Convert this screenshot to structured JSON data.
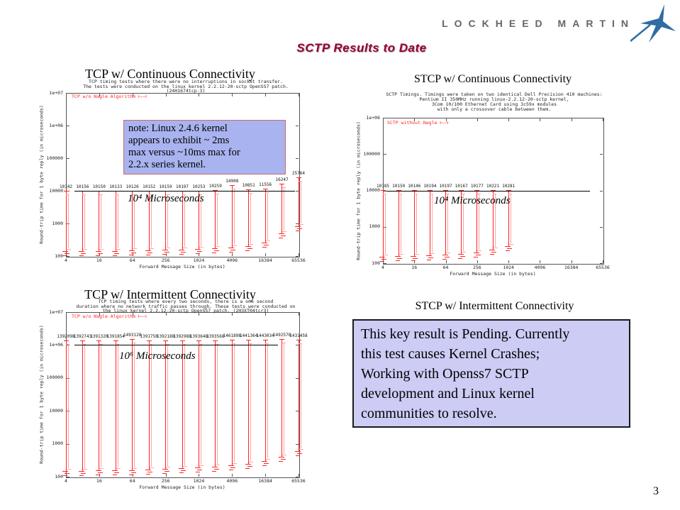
{
  "slide": {
    "title": "SCTP Results to Date",
    "logo_text": "LOCKHEED MARTIN",
    "page_number": "3"
  },
  "colors": {
    "title_red": "#990033",
    "plot_red": "#ff2222",
    "plot_pink": "#ffa3a3",
    "note_bg": "#a9b3ef",
    "note_border": "#cc6a6a",
    "pending_bg": "#ccccf5",
    "pending_border": "#1a1a1a",
    "logo_gray": "#63666a",
    "logo_blue": "#2e6ca4"
  },
  "note_box": {
    "lines": [
      "note: Linux 2.4.6 kernel",
      "appears to exhibit ~ 2ms",
      "max versus ~10ms max for",
      "2.2.x series kernel."
    ]
  },
  "pending_box": {
    "title": "STCP w/ Intermittent Connectivity",
    "lines": [
      "This key result is Pending. Currently",
      "this test causes Kernel Crashes;",
      "Working with Openss7 SCTP",
      "development and Linux kernel",
      "communities to resolve."
    ]
  },
  "chart_data": [
    {
      "type": "scatter",
      "title": "TCP w/ Continuous Connectivity",
      "subtitle_lines": [
        "TCP timing tests where there were no interruptions in socket transfer.",
        "The tests were conducted on the linux kernel 2.2.12-20-sctp OpenSS7 patch.",
        "(24H1674tcp-3)"
      ],
      "legend": "TCP w/o Nagle Algorithm",
      "legend_marker": "⊢—⊣",
      "xlabel": "Forward Message Size (in bytes)",
      "ylabel": "Round-trip time for 1 byte reply (in microseconds)",
      "x_log2_range": [
        2,
        16
      ],
      "y_log10_range": [
        2,
        7
      ],
      "x": [
        4,
        8,
        16,
        32,
        64,
        128,
        256,
        512,
        1024,
        2048,
        4096,
        8192,
        16384,
        32768,
        65536
      ],
      "max_values": [
        10142,
        10156,
        10150,
        10133,
        10126,
        10152,
        10159,
        10197,
        10253,
        10259,
        14908,
        10851,
        11556,
        16247,
        25764
      ],
      "min_values": [
        140,
        140,
        145,
        145,
        150,
        150,
        155,
        160,
        165,
        170,
        180,
        200,
        260,
        500,
        800
      ],
      "x_ticks": [
        {
          "label": "4",
          "value": 4
        },
        {
          "label": "16",
          "value": 16
        },
        {
          "label": "64",
          "value": 64
        },
        {
          "label": "256",
          "value": 256
        },
        {
          "label": "1024",
          "value": 1024
        },
        {
          "label": "4096",
          "value": 4096
        },
        {
          "label": "16384",
          "value": 16384
        },
        {
          "label": "65536",
          "value": 65536
        }
      ],
      "y_ticks": [
        {
          "label": "1e+07",
          "value": 10000000
        },
        {
          "label": "1e+06",
          "value": 1000000
        },
        {
          "label": "100000",
          "value": 100000
        },
        {
          "label": "10000",
          "value": 10000
        },
        {
          "label": "1000",
          "value": 1000
        },
        {
          "label": "100",
          "value": 100
        }
      ],
      "reference_line": {
        "value": 10000,
        "annotation": "10⁴ Microseconds"
      }
    },
    {
      "type": "scatter",
      "title": "STCP w/ Continuous Connectivity",
      "subtitle_lines": [
        "SCTP Timings.  Timings were taken on two identical Dell Precision 410 machines:",
        "Pentium II 350MHz running linux-2.2.12-20-sctp kernel,",
        "3Com 10/100 Ethernet Card using 3c59x modules",
        "with only a crossover cable between them."
      ],
      "legend": "SCTP without Nagle",
      "legend_marker": "⊢—⊣",
      "xlabel": "Forward Message Size (in bytes)",
      "ylabel": "Round-trip time for 1 byte reply (in microseconds)",
      "x_log2_range": [
        2,
        16
      ],
      "y_log10_range": [
        2,
        6
      ],
      "x": [
        4,
        8,
        16,
        32,
        64,
        128,
        256,
        512,
        1024
      ],
      "max_values": [
        10185,
        10150,
        10146,
        10194,
        10197,
        10167,
        10177,
        10221,
        10281
      ],
      "min_values": [
        150,
        155,
        160,
        165,
        170,
        180,
        200,
        230,
        300
      ],
      "x_ticks": [
        {
          "label": "4",
          "value": 4
        },
        {
          "label": "16",
          "value": 16
        },
        {
          "label": "64",
          "value": 64
        },
        {
          "label": "256",
          "value": 256
        },
        {
          "label": "1024",
          "value": 1024
        },
        {
          "label": "4096",
          "value": 4096
        },
        {
          "label": "16384",
          "value": 16384
        },
        {
          "label": "65536",
          "value": 65536
        }
      ],
      "y_ticks": [
        {
          "label": "1e+06",
          "value": 1000000
        },
        {
          "label": "100000",
          "value": 100000
        },
        {
          "label": "10000",
          "value": 10000
        },
        {
          "label": "1000",
          "value": 1000
        },
        {
          "label": "100",
          "value": 100
        }
      ],
      "reference_line": {
        "value": 10000,
        "annotation": "10⁴ Microseconds"
      }
    },
    {
      "type": "scatter",
      "title": "TCP w/ Intermittent Connectivity",
      "subtitle_lines": [
        "TCP timing tests where every two seconds, there is a one second",
        "duration where no network traffic passes through.  These tests were conducted on",
        "the linux kernel 2.2.12-20-sctp OpenSS7 patch. (2H3XT04tcr3)"
      ],
      "legend": "TCP w/o Nagle Algorithm",
      "legend_marker": "⊢—⊣",
      "xlabel": "Forward Message Size (in bytes)",
      "ylabel": "Round-trip time for 1 byte reply (in microseconds)",
      "x_log2_range": [
        2,
        16
      ],
      "y_log10_range": [
        2,
        7
      ],
      "x": [
        4,
        8,
        16,
        32,
        64,
        128,
        256,
        512,
        1024,
        2048,
        4096,
        8192,
        16384,
        32768,
        65536
      ],
      "max_values": [
        1392098,
        1392743,
        1391320,
        1391854,
        1493128,
        1391750,
        1392188,
        1392988,
        1393648,
        1393568,
        1461898,
        1441364,
        1443034,
        1492578,
        1431458
      ],
      "min_values": [
        150,
        150,
        155,
        155,
        160,
        165,
        170,
        180,
        190,
        200,
        220,
        250,
        300,
        400,
        600
      ],
      "x_ticks": [
        {
          "label": "4",
          "value": 4
        },
        {
          "label": "16",
          "value": 16
        },
        {
          "label": "64",
          "value": 64
        },
        {
          "label": "256",
          "value": 256
        },
        {
          "label": "1024",
          "value": 1024
        },
        {
          "label": "4096",
          "value": 4096
        },
        {
          "label": "16384",
          "value": 16384
        },
        {
          "label": "65536",
          "value": 65536
        }
      ],
      "y_ticks": [
        {
          "label": "1e+07",
          "value": 10000000
        },
        {
          "label": "1e+06",
          "value": 1000000
        },
        {
          "label": "100000",
          "value": 100000
        },
        {
          "label": "10000",
          "value": 10000
        },
        {
          "label": "1000",
          "value": 1000
        },
        {
          "label": "100",
          "value": 100
        }
      ],
      "reference_line": {
        "value": 1000000,
        "annotation": "10⁶ Microseconds"
      }
    }
  ]
}
